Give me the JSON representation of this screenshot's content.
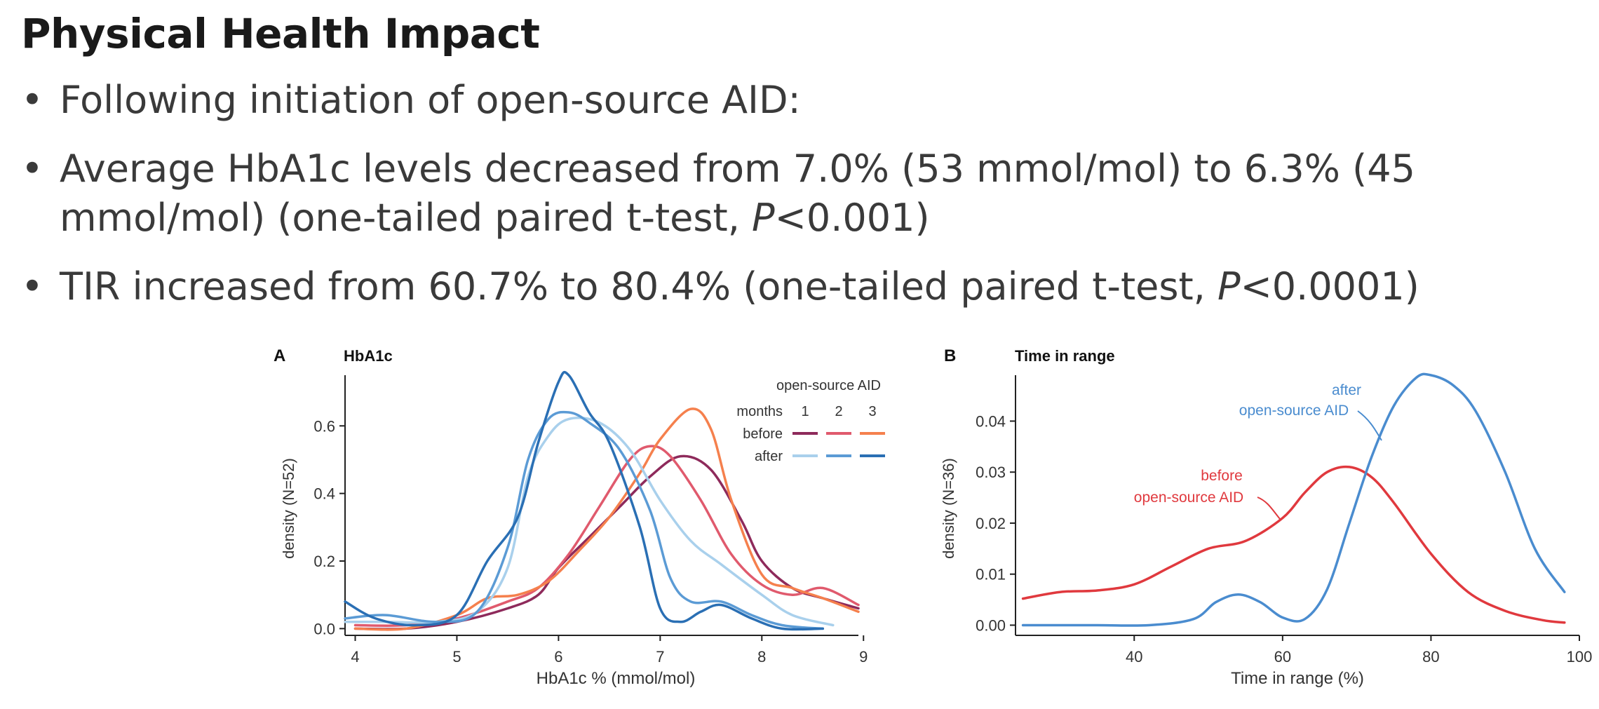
{
  "slide": {
    "title": "Physical Health Impact",
    "bullets": [
      {
        "text": "Following initiation of open-source AID:"
      },
      {
        "pre": "Average HbA1c levels decreased from 7.0% (53 mmol/mol) to 6.3% (45 mmol/mol) (one-tailed paired t-test, ",
        "italic": "P",
        "post": "<0.001)"
      },
      {
        "pre": "TIR increased from 60.7% to 80.4% (one-tailed paired t-test, ",
        "italic": "P",
        "post": "<0.0001)"
      }
    ]
  },
  "chart_data": [
    {
      "panel": "A",
      "type": "line",
      "title": "HbA1c",
      "xlabel": "HbA1c % (mmol/mol)",
      "ylabel": "density (N=52)",
      "xlim": [
        3.9,
        8.95
      ],
      "ylim": [
        -0.02,
        0.75
      ],
      "xticks": [
        4,
        5,
        6,
        7,
        8,
        9
      ],
      "yticks": [
        0.0,
        0.2,
        0.4,
        0.6
      ],
      "legend": {
        "title": "open-source AID",
        "col_header": "months",
        "cols": [
          "1",
          "2",
          "3"
        ],
        "rows": [
          "before",
          "after"
        ]
      },
      "series": [
        {
          "name": "before 1",
          "group": "before",
          "month": "1",
          "color": "#8e2a5b",
          "x": [
            4.0,
            4.5,
            5.0,
            5.5,
            5.8,
            6.0,
            6.3,
            6.6,
            6.9,
            7.2,
            7.5,
            7.8,
            8.0,
            8.3,
            8.6,
            8.95
          ],
          "y": [
            0.0,
            0.0,
            0.02,
            0.06,
            0.1,
            0.18,
            0.27,
            0.36,
            0.45,
            0.51,
            0.47,
            0.32,
            0.2,
            0.12,
            0.09,
            0.06
          ]
        },
        {
          "name": "before 2",
          "group": "before",
          "month": "2",
          "color": "#e05a6d",
          "x": [
            4.0,
            4.5,
            5.0,
            5.5,
            5.8,
            6.1,
            6.4,
            6.7,
            6.9,
            7.1,
            7.4,
            7.7,
            8.0,
            8.3,
            8.6,
            8.95
          ],
          "y": [
            0.01,
            0.01,
            0.03,
            0.08,
            0.12,
            0.22,
            0.36,
            0.5,
            0.54,
            0.51,
            0.38,
            0.22,
            0.13,
            0.1,
            0.12,
            0.07
          ]
        },
        {
          "name": "before 3",
          "group": "before",
          "month": "3",
          "color": "#f5804d",
          "x": [
            4.0,
            4.5,
            5.0,
            5.3,
            5.6,
            5.9,
            6.2,
            6.5,
            6.8,
            7.0,
            7.3,
            7.5,
            7.7,
            8.0,
            8.3,
            8.6,
            8.95
          ],
          "y": [
            0.0,
            0.0,
            0.04,
            0.09,
            0.1,
            0.14,
            0.23,
            0.33,
            0.46,
            0.56,
            0.65,
            0.59,
            0.38,
            0.16,
            0.12,
            0.09,
            0.05
          ]
        },
        {
          "name": "after 1",
          "group": "after",
          "month": "1",
          "color": "#a9d0ec",
          "x": [
            3.9,
            4.3,
            4.8,
            5.2,
            5.5,
            5.7,
            5.9,
            6.1,
            6.4,
            6.7,
            7.0,
            7.3,
            7.6,
            8.0,
            8.3,
            8.7
          ],
          "y": [
            0.02,
            0.02,
            0.02,
            0.05,
            0.18,
            0.45,
            0.57,
            0.62,
            0.61,
            0.53,
            0.38,
            0.26,
            0.19,
            0.1,
            0.04,
            0.01
          ]
        },
        {
          "name": "after 2",
          "group": "after",
          "month": "2",
          "color": "#5b9bd5",
          "x": [
            3.9,
            4.3,
            4.8,
            5.2,
            5.5,
            5.7,
            5.9,
            6.1,
            6.3,
            6.6,
            6.9,
            7.1,
            7.3,
            7.6,
            7.9,
            8.2,
            8.6
          ],
          "y": [
            0.03,
            0.04,
            0.02,
            0.05,
            0.24,
            0.5,
            0.62,
            0.64,
            0.61,
            0.53,
            0.35,
            0.15,
            0.08,
            0.08,
            0.04,
            0.01,
            0.0
          ]
        },
        {
          "name": "after 3",
          "group": "after",
          "month": "3",
          "color": "#2a6fb4",
          "x": [
            3.9,
            4.2,
            4.6,
            5.0,
            5.3,
            5.6,
            5.8,
            6.0,
            6.1,
            6.3,
            6.5,
            6.8,
            7.0,
            7.2,
            7.4,
            7.6,
            7.9,
            8.2,
            8.6
          ],
          "y": [
            0.08,
            0.03,
            0.01,
            0.04,
            0.2,
            0.33,
            0.55,
            0.73,
            0.75,
            0.64,
            0.55,
            0.3,
            0.06,
            0.02,
            0.05,
            0.07,
            0.03,
            0.0,
            0.0
          ]
        }
      ]
    },
    {
      "panel": "B",
      "type": "line",
      "title": "Time in range",
      "xlabel": "Time in range (%)",
      "ylabel": "density (N=36)",
      "xlim": [
        24,
        100
      ],
      "ylim": [
        -0.002,
        0.049
      ],
      "xticks": [
        40,
        60,
        80,
        100
      ],
      "yticks": [
        0.0,
        0.01,
        0.02,
        0.03,
        0.04
      ],
      "annotations": [
        {
          "lines": [
            "after",
            "open-source AID"
          ],
          "color": "#4a8ccf"
        },
        {
          "lines": [
            "before",
            "open-source AID"
          ],
          "color": "#e0393e"
        }
      ],
      "series": [
        {
          "name": "before open-source AID",
          "color": "#e0393e",
          "x": [
            25,
            30,
            35,
            40,
            45,
            50,
            55,
            60,
            63,
            66,
            69,
            72,
            75,
            80,
            85,
            90,
            95,
            98
          ],
          "y": [
            0.0052,
            0.0065,
            0.0068,
            0.008,
            0.0115,
            0.015,
            0.0165,
            0.021,
            0.026,
            0.03,
            0.031,
            0.029,
            0.024,
            0.014,
            0.0065,
            0.0028,
            0.001,
            0.0005
          ]
        },
        {
          "name": "after open-source AID",
          "color": "#4a8ccf",
          "x": [
            25,
            35,
            42,
            48,
            51,
            54,
            57,
            60,
            63,
            66,
            69,
            72,
            75,
            78,
            80,
            83,
            86,
            90,
            94,
            98
          ],
          "y": [
            0,
            0,
            0,
            0.0012,
            0.0045,
            0.006,
            0.0045,
            0.0015,
            0.0012,
            0.007,
            0.02,
            0.033,
            0.043,
            0.0485,
            0.049,
            0.047,
            0.042,
            0.03,
            0.015,
            0.0065
          ]
        }
      ]
    }
  ]
}
